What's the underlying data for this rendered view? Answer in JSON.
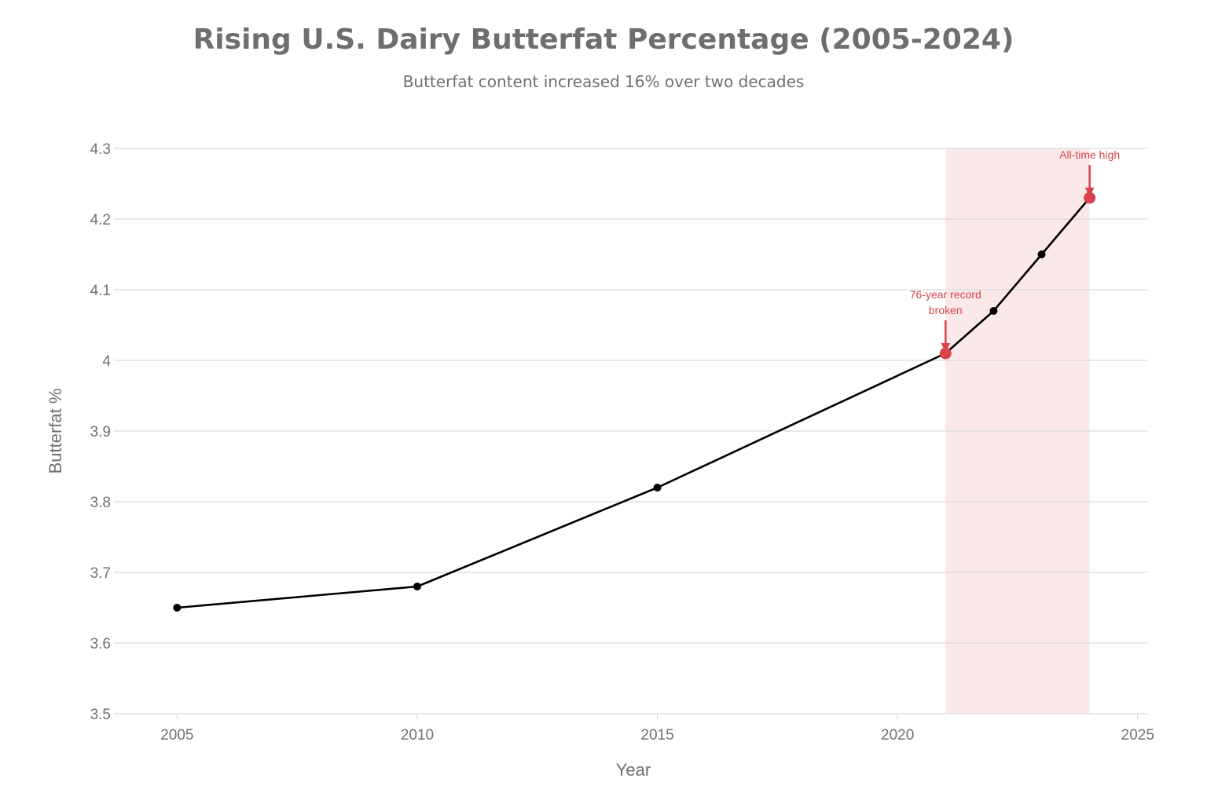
{
  "colors": {
    "line": "#000000",
    "highlight_fill": "#fbe9ea",
    "accent": "#d9434b",
    "grid": "#d9d9d9",
    "text": "#707070"
  },
  "chart_data": {
    "type": "line",
    "title": "Rising U.S. Dairy Butterfat Percentage (2005-2024)",
    "subtitle": "Butterfat content increased 16% over two decades",
    "xlabel": "Year",
    "ylabel": "Butterfat %",
    "xlim": [
      2003.8,
      2025.2
    ],
    "ylim": [
      3.5,
      4.3
    ],
    "x_ticks": [
      "2005",
      "2010",
      "2015",
      "2020",
      "2025"
    ],
    "y_ticks": [
      "3.5",
      "3.6",
      "3.7",
      "3.8",
      "3.9",
      "4",
      "4.1",
      "4.2",
      "4.3"
    ],
    "grid": true,
    "series": [
      {
        "x": [
          2005,
          2010,
          2015,
          2021,
          2022,
          2023,
          2024
        ],
        "values": [
          3.65,
          3.68,
          3.82,
          4.01,
          4.07,
          4.15,
          4.23
        ]
      }
    ],
    "highlight_range": {
      "x_start": 2021,
      "x_end": 2024
    },
    "annotations": [
      {
        "x": 2021,
        "y": 4.01,
        "lines": [
          "76-year record",
          "broken"
        ]
      },
      {
        "x": 2024,
        "y": 4.23,
        "lines": [
          "All-time high"
        ]
      }
    ]
  }
}
